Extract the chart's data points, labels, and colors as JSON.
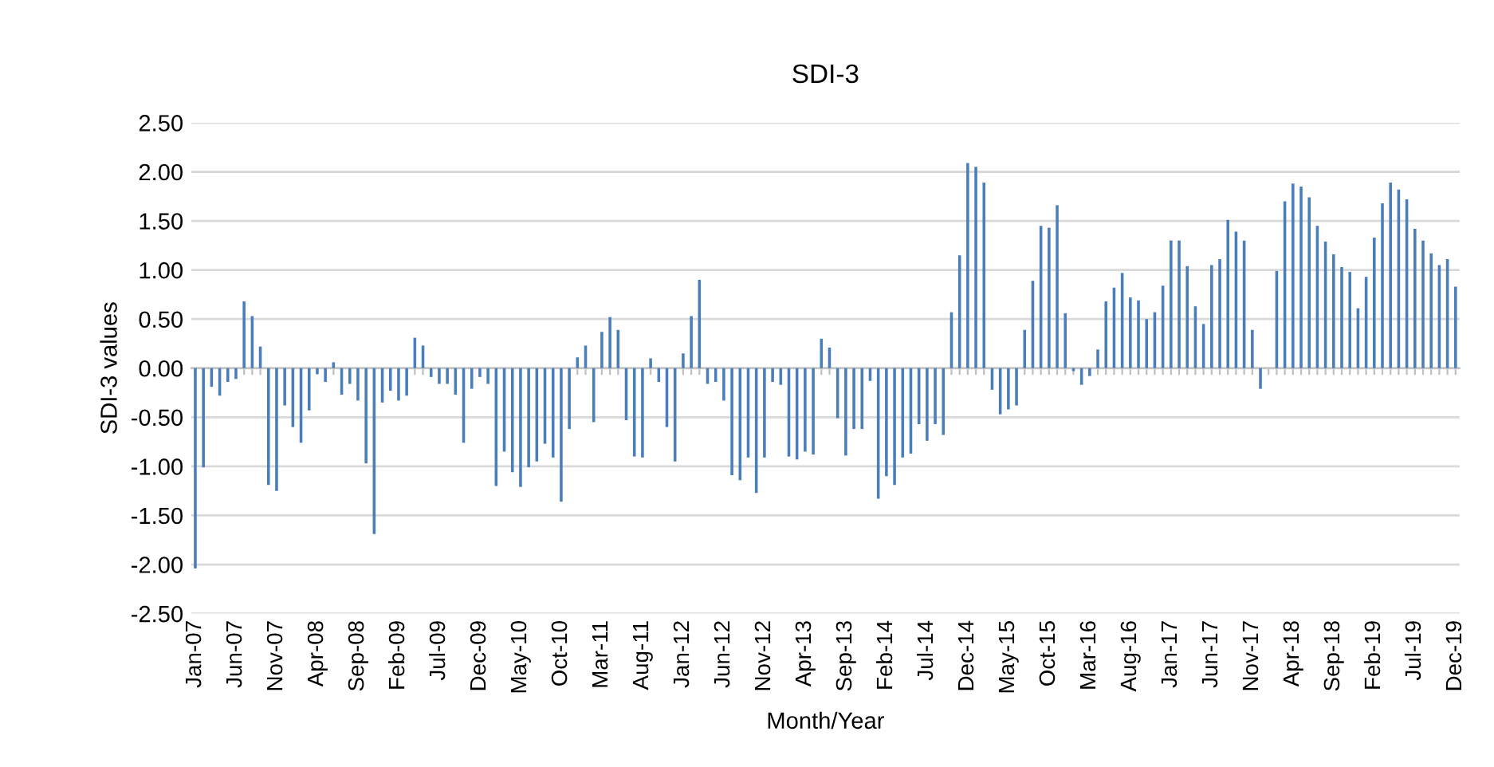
{
  "chart_data": {
    "type": "bar",
    "title": "SDI-3",
    "xlabel": "Month/Year",
    "ylabel": "SDI-3 values",
    "categories": [
      "Jan-07",
      null,
      null,
      null,
      null,
      "Jun-07",
      null,
      null,
      null,
      null,
      "Nov-07",
      null,
      null,
      null,
      null,
      "Apr-08",
      null,
      null,
      null,
      null,
      "Sep-08",
      null,
      null,
      null,
      null,
      "Feb-09",
      null,
      null,
      null,
      null,
      "Jul-09",
      null,
      null,
      null,
      null,
      "Dec-09",
      null,
      null,
      null,
      null,
      "May-10",
      null,
      null,
      null,
      null,
      "Oct-10",
      null,
      null,
      null,
      null,
      "Mar-11",
      null,
      null,
      null,
      null,
      "Aug-11",
      null,
      null,
      null,
      null,
      "Jan-12",
      null,
      null,
      null,
      null,
      "Jun-12",
      null,
      null,
      null,
      null,
      "Nov-12",
      null,
      null,
      null,
      null,
      "Apr-13",
      null,
      null,
      null,
      null,
      "Sep-13",
      null,
      null,
      null,
      null,
      "Feb-14",
      null,
      null,
      null,
      null,
      "Jul-14",
      null,
      null,
      null,
      null,
      "Dec-14",
      null,
      null,
      null,
      null,
      "May-15",
      null,
      null,
      null,
      null,
      "Oct-15",
      null,
      null,
      null,
      null,
      "Mar-16",
      null,
      null,
      null,
      null,
      "Aug-16",
      null,
      null,
      null,
      null,
      "Jan-17",
      null,
      null,
      null,
      null,
      "Jun-17",
      null,
      null,
      null,
      null,
      "Nov-17",
      null,
      null,
      null,
      null,
      "Apr-18",
      null,
      null,
      null,
      null,
      "Sep-18",
      null,
      null,
      null,
      null,
      "Feb-19",
      null,
      null,
      null,
      null,
      "Jul-19",
      null,
      null,
      null,
      null,
      "Dec-19"
    ],
    "values": [
      -2.04,
      -1.01,
      -0.19,
      -0.28,
      -0.14,
      -0.11,
      0.68,
      0.53,
      0.22,
      -1.19,
      -1.25,
      -0.38,
      -0.6,
      -0.76,
      -0.43,
      -0.06,
      -0.14,
      0.06,
      -0.27,
      -0.16,
      -0.33,
      -0.97,
      -1.69,
      -0.35,
      -0.23,
      -0.33,
      -0.28,
      0.31,
      0.23,
      -0.09,
      -0.16,
      -0.16,
      -0.27,
      -0.76,
      -0.21,
      -0.09,
      -0.16,
      -1.2,
      -0.85,
      -1.06,
      -1.21,
      -1.01,
      -0.95,
      -0.77,
      -0.91,
      -1.36,
      -0.62,
      0.11,
      0.23,
      -0.55,
      0.37,
      0.52,
      0.39,
      -0.53,
      -0.9,
      -0.91,
      0.1,
      -0.14,
      -0.6,
      -0.95,
      0.15,
      0.53,
      0.9,
      -0.16,
      -0.14,
      -0.33,
      -1.09,
      -1.14,
      -0.91,
      -1.27,
      -0.91,
      -0.14,
      -0.17,
      -0.9,
      -0.93,
      -0.85,
      -0.88,
      0.3,
      0.21,
      -0.51,
      -0.89,
      -0.62,
      -0.62,
      -0.13,
      -1.33,
      -1.1,
      -1.19,
      -0.91,
      -0.87,
      -0.57,
      -0.74,
      -0.57,
      -0.68,
      0.57,
      1.15,
      2.09,
      2.05,
      1.89,
      -0.22,
      -0.47,
      -0.42,
      -0.38,
      0.39,
      0.89,
      1.45,
      1.43,
      1.66,
      0.56,
      -0.03,
      -0.17,
      -0.08,
      0.19,
      0.68,
      0.82,
      0.97,
      0.72,
      0.69,
      0.5,
      0.57,
      0.84,
      1.3,
      1.3,
      1.04,
      0.63,
      0.45,
      1.05,
      1.11,
      1.51,
      1.39,
      1.3,
      0.39,
      -0.21,
      0,
      0.99,
      1.7,
      1.88,
      1.85,
      1.74,
      1.45,
      1.29,
      1.16,
      1.03,
      0.98,
      0.61,
      0.93,
      1.33,
      1.68,
      1.89,
      1.82,
      1.72,
      1.42,
      1.3,
      1.17,
      1.05,
      1.11,
      0.83
    ],
    "color": "#4a7ebb",
    "ylim": [
      -2.5,
      2.5
    ],
    "yticks": [
      {
        "value": -2.5,
        "label": "-2.50"
      },
      {
        "value": -2.0,
        "label": "-2.00"
      },
      {
        "value": -1.5,
        "label": "-1.50"
      },
      {
        "value": -1.0,
        "label": "-1.00"
      },
      {
        "value": -0.5,
        "label": "-0.50"
      },
      {
        "value": 0,
        "label": "0.00"
      },
      {
        "value": 0.5,
        "label": "0.50"
      },
      {
        "value": 1.0,
        "label": "1.00"
      },
      {
        "value": 1.5,
        "label": "1.50"
      },
      {
        "value": 2.0,
        "label": "2.00"
      },
      {
        "value": 2.5,
        "label": "2.50"
      }
    ],
    "grid": "y"
  }
}
